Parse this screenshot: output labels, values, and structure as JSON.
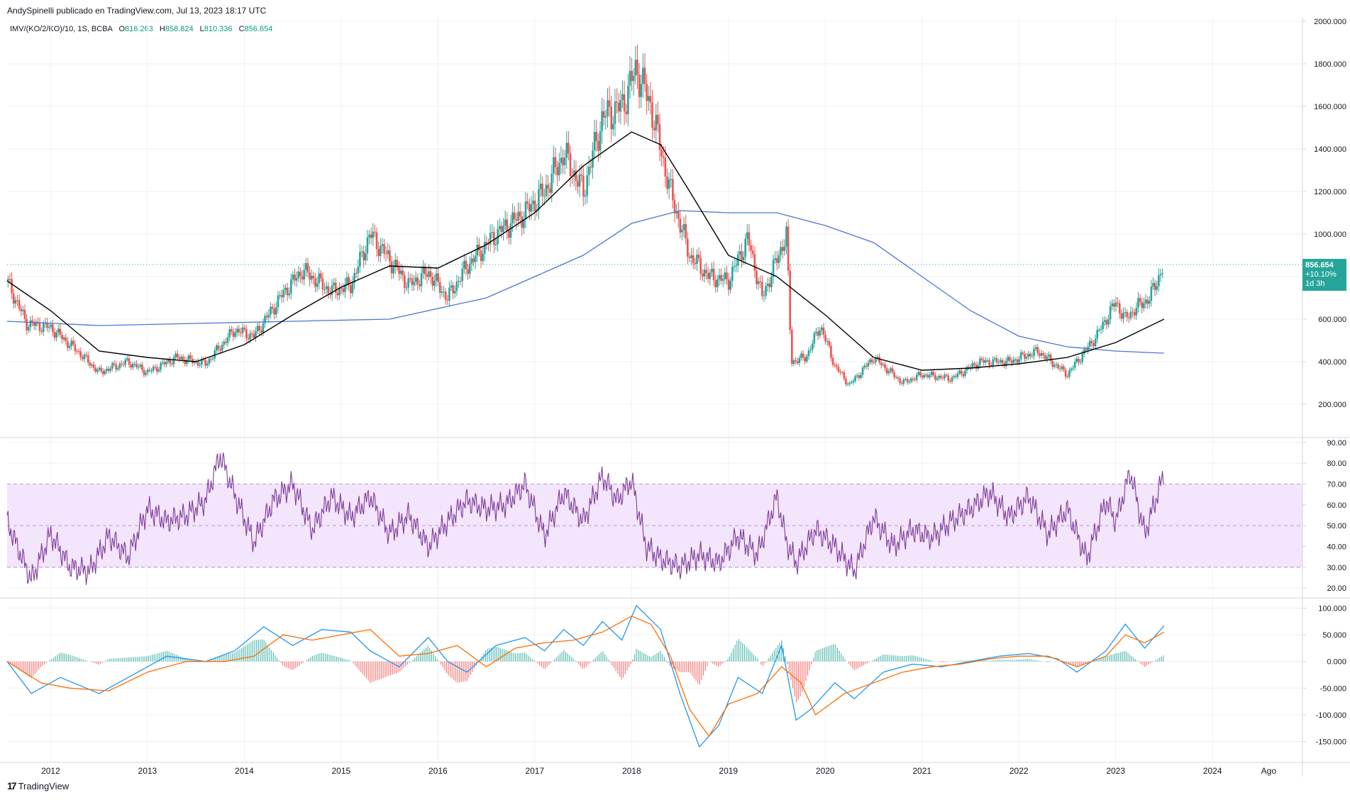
{
  "header": {
    "publisher_line": "AndySpinelli publicado en TradingView.com, Jul 13, 2023 18:17 UTC"
  },
  "symbol": {
    "name": "IMV/(KO/2/KO)/10, 1S, BCBA",
    "open_label": "O",
    "open": "816.263",
    "high_label": "H",
    "high": "858.824",
    "low_label": "L",
    "low": "810.336",
    "close_label": "C",
    "close": "856.654"
  },
  "last_price": {
    "value": "856.654",
    "change": "+10.10%",
    "countdown": "1d 3h"
  },
  "footer": {
    "brand": "TradingView",
    "logo_glyph": "17"
  },
  "colors": {
    "up": "#26a69a",
    "down": "#ef5350",
    "sma_long": "#4a76d1",
    "sma_short": "#000000",
    "rsi": "#7e3b99",
    "rsi_band": "#f3e5fc",
    "macd": "#2196f3",
    "signal": "#ff6d00",
    "grid": "#eef0f3"
  },
  "chart_data": [
    {
      "type": "line",
      "title": "",
      "x_axis_labels": [
        "2012",
        "2013",
        "2014",
        "2015",
        "2016",
        "2017",
        "2018",
        "2019",
        "2020",
        "2021",
        "2022",
        "2023",
        "2024",
        "Ago"
      ],
      "y_tick_labels": [
        "2000.000",
        "1800.000",
        "1600.000",
        "1400.000",
        "1200.000",
        "1000.000",
        "800.000",
        "600.000",
        "400.000",
        "200.000"
      ],
      "ylim": [
        50,
        2000
      ],
      "series": [
        {
          "role": "price",
          "x": [
            2011.55,
            2011.75,
            2012.0,
            2012.3,
            2012.5,
            2012.8,
            2013.0,
            2013.3,
            2013.6,
            2013.9,
            2014.1,
            2014.4,
            2014.6,
            2014.9,
            2015.1,
            2015.3,
            2015.5,
            2015.7,
            2015.9,
            2016.1,
            2016.3,
            2016.6,
            2016.9,
            2017.1,
            2017.3,
            2017.5,
            2017.7,
            2017.9,
            2018.05,
            2018.2,
            2018.4,
            2018.6,
            2018.8,
            2019.0,
            2019.2,
            2019.35,
            2019.5,
            2019.6,
            2019.65,
            2019.8,
            2019.95,
            2020.1,
            2020.25,
            2020.5,
            2020.8,
            2021.0,
            2021.3,
            2021.6,
            2021.9,
            2022.2,
            2022.5,
            2022.8,
            2023.0,
            2023.1,
            2023.2,
            2023.35,
            2023.5
          ],
          "y": [
            780,
            580,
            560,
            440,
            350,
            400,
            350,
            420,
            390,
            550,
            520,
            720,
            830,
            730,
            760,
            1000,
            880,
            760,
            820,
            700,
            850,
            1000,
            1100,
            1200,
            1380,
            1200,
            1550,
            1600,
            1780,
            1600,
            1200,
            900,
            800,
            780,
            980,
            700,
            880,
            1000,
            400,
            420,
            570,
            380,
            290,
            420,
            300,
            340,
            320,
            400,
            400,
            450,
            340,
            520,
            680,
            600,
            650,
            700,
            856.654
          ]
        },
        {
          "name": "",
          "role": "sma_long",
          "x": [
            2011.55,
            2012.5,
            2013.5,
            2014.5,
            2015.5,
            2016.5,
            2017.5,
            2018.0,
            2018.5,
            2019.0,
            2019.5,
            2020.0,
            2020.5,
            2021.0,
            2021.5,
            2022.0,
            2022.5,
            2023.0,
            2023.5
          ],
          "y": [
            590,
            570,
            580,
            590,
            600,
            700,
            900,
            1050,
            1110,
            1100,
            1100,
            1040,
            960,
            800,
            640,
            520,
            470,
            450,
            440
          ]
        },
        {
          "name": "",
          "role": "sma_short",
          "x": [
            2011.55,
            2012.0,
            2012.5,
            2013.0,
            2013.5,
            2014.0,
            2014.5,
            2015.0,
            2015.5,
            2016.0,
            2016.5,
            2017.0,
            2017.5,
            2018.0,
            2018.3,
            2018.6,
            2019.0,
            2019.5,
            2020.0,
            2020.5,
            2021.0,
            2021.5,
            2022.0,
            2022.5,
            2023.0,
            2023.5
          ],
          "y": [
            780,
            640,
            450,
            420,
            400,
            480,
            620,
            750,
            850,
            840,
            950,
            1100,
            1320,
            1480,
            1420,
            1200,
            900,
            800,
            620,
            420,
            360,
            370,
            390,
            420,
            490,
            600
          ]
        }
      ]
    },
    {
      "type": "line",
      "title": "",
      "y_tick_labels": [
        "90.00",
        "80.00",
        "70.00",
        "60.00",
        "50.00",
        "40.00",
        "30.00",
        "20.00"
      ],
      "ylim": [
        18,
        92
      ],
      "overbought": 70,
      "midline": 50,
      "oversold": 30,
      "series": [
        {
          "name": "",
          "role": "rsi",
          "x": [
            2011.55,
            2011.7,
            2011.8,
            2012.0,
            2012.2,
            2012.4,
            2012.6,
            2012.8,
            2013.0,
            2013.2,
            2013.4,
            2013.6,
            2013.75,
            2013.9,
            2014.1,
            2014.3,
            2014.5,
            2014.7,
            2014.9,
            2015.1,
            2015.3,
            2015.5,
            2015.7,
            2015.9,
            2016.1,
            2016.3,
            2016.5,
            2016.7,
            2016.9,
            2017.1,
            2017.3,
            2017.5,
            2017.7,
            2017.85,
            2018.0,
            2018.15,
            2018.3,
            2018.5,
            2018.7,
            2018.9,
            2019.1,
            2019.3,
            2019.5,
            2019.6,
            2019.7,
            2019.9,
            2020.1,
            2020.3,
            2020.5,
            2020.7,
            2020.9,
            2021.1,
            2021.3,
            2021.5,
            2021.7,
            2021.9,
            2022.1,
            2022.3,
            2022.5,
            2022.7,
            2022.9,
            2023.0,
            2023.15,
            2023.3,
            2023.5
          ],
          "y": [
            52,
            35,
            24,
            46,
            30,
            28,
            45,
            35,
            58,
            52,
            55,
            62,
            84,
            65,
            42,
            62,
            70,
            48,
            64,
            54,
            64,
            46,
            55,
            40,
            52,
            62,
            58,
            60,
            70,
            45,
            66,
            52,
            74,
            62,
            72,
            40,
            34,
            30,
            36,
            32,
            45,
            36,
            64,
            42,
            32,
            48,
            40,
            28,
            54,
            40,
            48,
            44,
            52,
            58,
            66,
            54,
            64,
            46,
            58,
            34,
            62,
            52,
            76,
            46,
            75
          ]
        }
      ]
    },
    {
      "type": "line",
      "title": "",
      "y_tick_labels": [
        "100.000",
        "50.000",
        "0.000",
        "-50.000",
        "-100.000",
        "-150.000"
      ],
      "ylim": [
        -180,
        110
      ],
      "series": [
        {
          "name": "",
          "role": "macd",
          "x": [
            2011.55,
            2011.8,
            2012.1,
            2012.5,
            2012.9,
            2013.2,
            2013.6,
            2013.9,
            2014.2,
            2014.5,
            2014.8,
            2015.1,
            2015.3,
            2015.6,
            2015.9,
            2016.1,
            2016.3,
            2016.6,
            2016.9,
            2017.1,
            2017.3,
            2017.5,
            2017.7,
            2017.9,
            2018.05,
            2018.3,
            2018.5,
            2018.7,
            2018.9,
            2019.1,
            2019.35,
            2019.55,
            2019.7,
            2019.85,
            2020.1,
            2020.3,
            2020.6,
            2020.9,
            2021.2,
            2021.5,
            2021.8,
            2022.1,
            2022.4,
            2022.6,
            2022.9,
            2023.1,
            2023.3,
            2023.5
          ],
          "y": [
            0,
            -60,
            -30,
            -60,
            -20,
            10,
            0,
            20,
            65,
            30,
            60,
            55,
            20,
            -10,
            45,
            0,
            -20,
            30,
            45,
            20,
            60,
            30,
            75,
            40,
            105,
            60,
            -60,
            -160,
            -120,
            -30,
            -60,
            30,
            -110,
            -90,
            -40,
            -70,
            -20,
            -5,
            -10,
            0,
            10,
            15,
            5,
            -20,
            20,
            70,
            25,
            67
          ]
        },
        {
          "name": "",
          "role": "signal",
          "x": [
            2011.55,
            2011.9,
            2012.2,
            2012.6,
            2013.0,
            2013.4,
            2013.8,
            2014.1,
            2014.4,
            2014.7,
            2015.0,
            2015.3,
            2015.6,
            2015.9,
            2016.2,
            2016.5,
            2016.8,
            2017.1,
            2017.4,
            2017.7,
            2018.0,
            2018.2,
            2018.4,
            2018.6,
            2018.8,
            2019.0,
            2019.3,
            2019.55,
            2019.75,
            2019.9,
            2020.2,
            2020.5,
            2020.8,
            2021.1,
            2021.4,
            2021.7,
            2022.0,
            2022.3,
            2022.6,
            2022.9,
            2023.1,
            2023.3,
            2023.5
          ],
          "y": [
            0,
            -40,
            -50,
            -55,
            -20,
            0,
            0,
            10,
            50,
            40,
            50,
            60,
            10,
            15,
            30,
            -10,
            25,
            35,
            40,
            55,
            85,
            70,
            10,
            -90,
            -140,
            -80,
            -60,
            -10,
            -40,
            -100,
            -60,
            -40,
            -20,
            -10,
            -5,
            5,
            10,
            10,
            -10,
            10,
            50,
            35,
            55
          ]
        }
      ]
    }
  ]
}
